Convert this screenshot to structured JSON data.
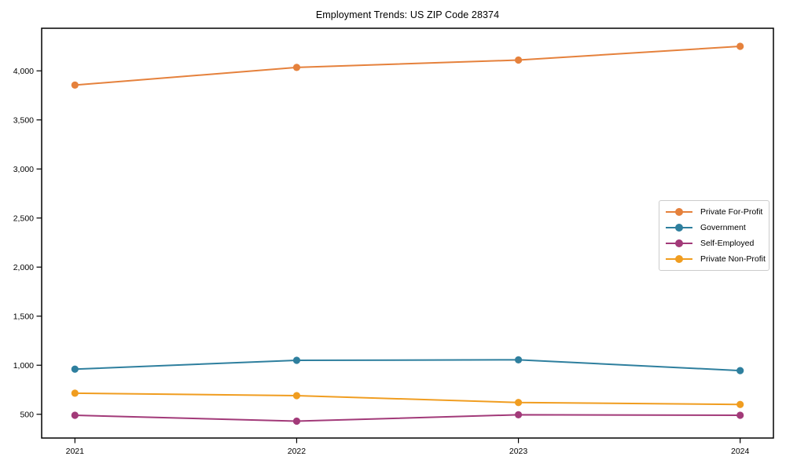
{
  "chart_data": {
    "type": "line",
    "title": "Employment Trends: US ZIP Code 28374",
    "xlabel": "",
    "ylabel": "",
    "x": [
      2021,
      2022,
      2023,
      2024
    ],
    "x_tick_labels": [
      "2021",
      "2022",
      "2023",
      "2024"
    ],
    "y_ticks": [
      500,
      1000,
      1500,
      2000,
      2500,
      3000,
      3500,
      4000
    ],
    "y_tick_labels": [
      "500",
      "1,000",
      "1,500",
      "2,000",
      "2,500",
      "3,000",
      "3,500",
      "4,000"
    ],
    "xlim": [
      2020.85,
      2024.15
    ],
    "ylim": [
      258,
      4434
    ],
    "grid": false,
    "legend_position": "center right",
    "marker": "circle",
    "series": [
      {
        "name": "Private For-Profit",
        "color": "#e5813c",
        "values": [
          3855,
          4035,
          4110,
          4250
        ]
      },
      {
        "name": "Government",
        "color": "#2e7f9e",
        "values": [
          960,
          1050,
          1055,
          945
        ]
      },
      {
        "name": "Self-Employed",
        "color": "#a23a79",
        "values": [
          490,
          430,
          495,
          490
        ]
      },
      {
        "name": "Private Non-Profit",
        "color": "#f09d20",
        "values": [
          715,
          690,
          620,
          600
        ]
      }
    ]
  }
}
